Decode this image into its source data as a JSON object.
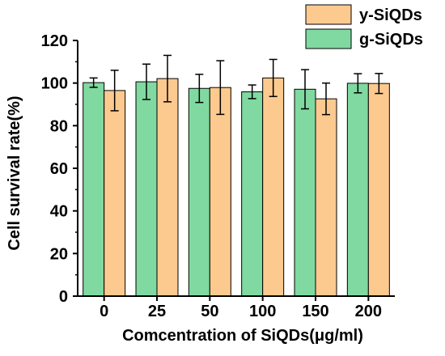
{
  "chart_data": {
    "type": "bar",
    "title": "",
    "xlabel": "Comcentration of SiQDs(μg/ml)",
    "ylabel": "Cell survival rate(%)",
    "ylim": [
      0,
      120
    ],
    "yticks": [
      "0",
      "20",
      "40",
      "60",
      "80",
      "100",
      "120"
    ],
    "categories": [
      "0",
      "25",
      "50",
      "100",
      "150",
      "200"
    ],
    "grid": false,
    "legend_position": "top-right",
    "error_bars": true,
    "series": [
      {
        "name": "g-SiQDs",
        "color": "#7fd9a0",
        "values": [
          100.2,
          100.6,
          97.5,
          95.9,
          97.1,
          99.9
        ],
        "errors": [
          2.2,
          8.3,
          6.6,
          3.2,
          9.2,
          4.5
        ]
      },
      {
        "name": "y-SiQDs",
        "color": "#fcc98f",
        "values": [
          96.5,
          102.1,
          97.9,
          102.4,
          92.6,
          99.8
        ],
        "errors": [
          9.5,
          10.9,
          12.6,
          8.7,
          7.4,
          4.7
        ]
      }
    ]
  }
}
